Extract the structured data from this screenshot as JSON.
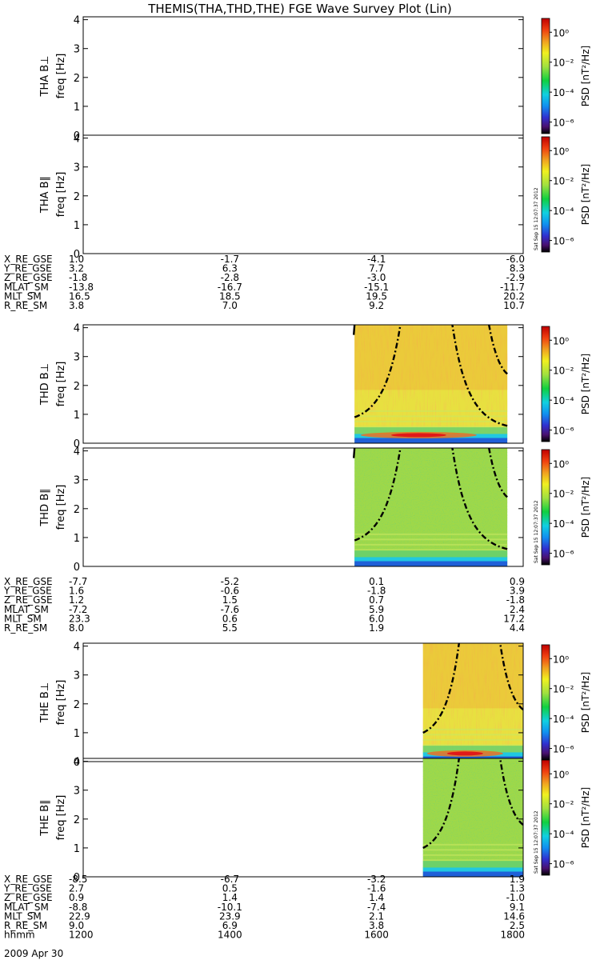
{
  "title": "THEMIS(THA,THD,THE) FGE Wave Survey Plot (Lin)",
  "date_label": "2009 Apr 30",
  "stamp": "Sat Sep 15 12:07:37 2012",
  "colorbar": {
    "label": "PSD [nT²/Hz]",
    "ticks": [
      "10⁰",
      "10⁻²",
      "10⁻⁴",
      "10⁻⁶"
    ]
  },
  "colors": {
    "spectrogram_bg": "#e8e040",
    "spectrogram_green": "#a0d848",
    "spectrogram_orange": "#f0a030",
    "band_cyan": "#20c8e0",
    "band_blue": "#2060d8",
    "band_red": "#e01818"
  },
  "chart_data": [
    {
      "type": "heatmap",
      "probe": "THA",
      "ylabel": "THA B⊥",
      "unit_label": "freq [Hz]",
      "ylim": [
        0,
        4.1
      ],
      "yticks": [
        0,
        1,
        2,
        3,
        4
      ],
      "xlim": [
        "1200",
        "1800"
      ],
      "data_range": null
    },
    {
      "type": "heatmap",
      "probe": "THA",
      "ylabel": "THA B∥",
      "unit_label": "freq [Hz]",
      "ylim": [
        0,
        4.1
      ],
      "yticks": [
        0,
        1,
        2,
        3,
        4
      ],
      "xlim": [
        "1200",
        "1800"
      ],
      "data_range": null
    },
    {
      "type": "heatmap",
      "probe": "THD",
      "ylabel": "THD B⊥",
      "unit_label": "freq [Hz]",
      "ylim": [
        0,
        4.1
      ],
      "yticks": [
        0,
        1,
        2,
        3,
        4
      ],
      "xlim": [
        "1200",
        "1800"
      ],
      "data_range": [
        "1542",
        "1747"
      ]
    },
    {
      "type": "heatmap",
      "probe": "THD",
      "ylabel": "THD B∥",
      "unit_label": "freq [Hz]",
      "ylim": [
        0,
        4.1
      ],
      "yticks": [
        0,
        1,
        2,
        3,
        4
      ],
      "xlim": [
        "1200",
        "1800"
      ],
      "data_range": [
        "1542",
        "1747"
      ]
    },
    {
      "type": "heatmap",
      "probe": "THE",
      "ylabel": "THE B⊥",
      "unit_label": "freq [Hz]",
      "ylim": [
        0,
        4.1
      ],
      "yticks": [
        0,
        1,
        2,
        3,
        4
      ],
      "xlim": [
        "1200",
        "1800"
      ],
      "data_range": [
        "1638",
        "1800"
      ]
    },
    {
      "type": "heatmap",
      "probe": "THE",
      "ylabel": "THE B∥",
      "unit_label": "freq [Hz]",
      "ylim": [
        0,
        4.1
      ],
      "yticks": [
        0,
        1,
        2,
        3,
        4
      ],
      "xlim": [
        "1200",
        "1800"
      ],
      "data_range": [
        "1638",
        "1800"
      ]
    }
  ],
  "ephemeris": [
    {
      "probe": "THA",
      "rows": [
        {
          "label": "X_RE_GSE",
          "values": [
            "1.0",
            "-1.7",
            "-4.1",
            "-6.0"
          ]
        },
        {
          "label": "Y_RE_GSE",
          "values": [
            "3.2",
            "6.3",
            "7.7",
            "8.3"
          ]
        },
        {
          "label": "Z_RE_GSE",
          "values": [
            "-1.8",
            "-2.8",
            "-3.0",
            "-2.9"
          ]
        },
        {
          "label": "MLAT_SM",
          "values": [
            "-13.8",
            "-16.7",
            "-15.1",
            "-11.7"
          ]
        },
        {
          "label": "MLT_SM",
          "values": [
            "16.5",
            "18.5",
            "19.5",
            "20.2"
          ]
        },
        {
          "label": "R_RE_SM",
          "values": [
            "3.8",
            "7.0",
            "9.2",
            "10.7"
          ]
        }
      ]
    },
    {
      "probe": "THD",
      "rows": [
        {
          "label": "X_RE_GSE",
          "values": [
            "-7.7",
            "-5.2",
            "0.1",
            "0.9"
          ]
        },
        {
          "label": "Y_RE_GSE",
          "values": [
            "1.6",
            "-0.6",
            "-1.8",
            "3.9"
          ]
        },
        {
          "label": "Z_RE_GSE",
          "values": [
            "1.2",
            "1.5",
            "0.7",
            "-1.8"
          ]
        },
        {
          "label": "MLAT_SM",
          "values": [
            "-7.2",
            "-7.6",
            "5.9",
            "2.4"
          ]
        },
        {
          "label": "MLT_SM",
          "values": [
            "23.3",
            "0.6",
            "6.0",
            "17.2"
          ]
        },
        {
          "label": "R_RE_SM",
          "values": [
            "8.0",
            "5.5",
            "1.9",
            "4.4"
          ]
        }
      ]
    },
    {
      "probe": "THE",
      "rows": [
        {
          "label": "X_RE_GSE",
          "values": [
            "-8.5",
            "-6.7",
            "-3.2",
            "1.9"
          ]
        },
        {
          "label": "Y_RE_GSE",
          "values": [
            "2.7",
            "0.5",
            "-1.6",
            "1.3"
          ]
        },
        {
          "label": "Z_RE_GSE",
          "values": [
            "0.9",
            "1.4",
            "1.4",
            "-1.0"
          ]
        },
        {
          "label": "MLAT_SM",
          "values": [
            "-8.8",
            "-10.1",
            "-7.4",
            "9.1"
          ]
        },
        {
          "label": "MLT_SM",
          "values": [
            "22.9",
            "23.9",
            "2.1",
            "14.6"
          ]
        },
        {
          "label": "R_RE_SM",
          "values": [
            "9.0",
            "6.9",
            "3.8",
            "2.5"
          ]
        },
        {
          "label": "hhmm",
          "values": [
            "1200",
            "1400",
            "1600",
            "1800"
          ]
        }
      ]
    }
  ]
}
